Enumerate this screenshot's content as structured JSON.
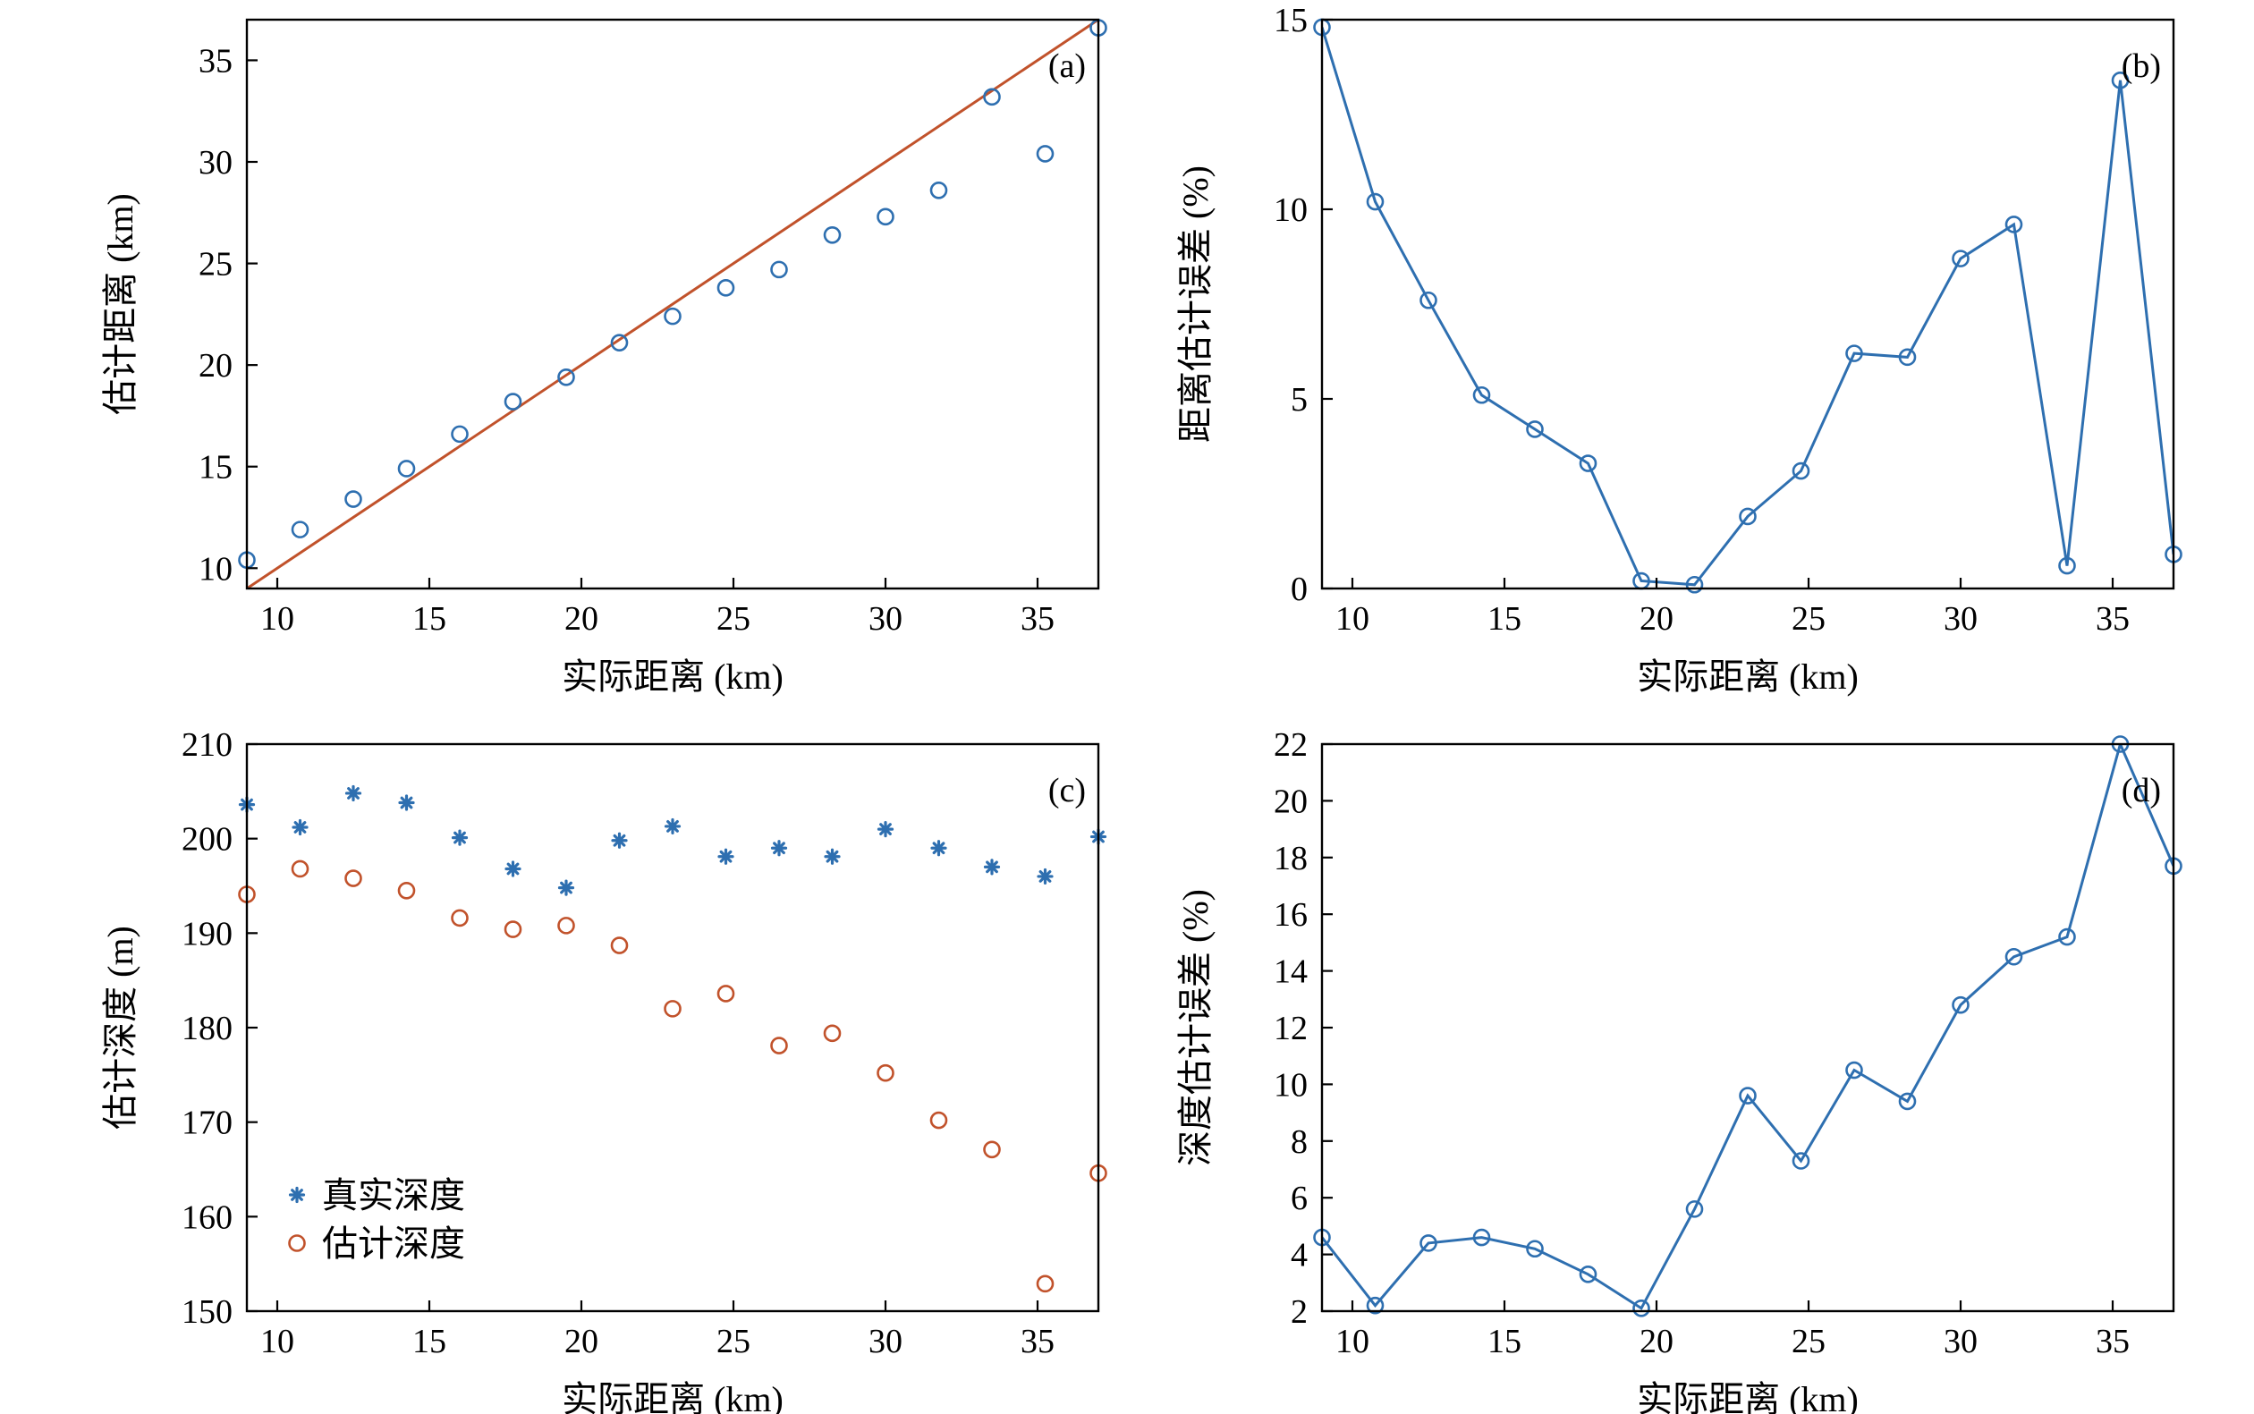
{
  "colors": {
    "blue": "#2e6fb0",
    "orange": "#c1522b",
    "axis": "#000000"
  },
  "chart_data": [
    {
      "panel": "(a)",
      "type": "scatter",
      "xlabel": "实际距离 (km)",
      "ylabel": "估计距离 (km)",
      "xlim": [
        9,
        37
      ],
      "ylim": [
        9,
        37
      ],
      "xticks": [
        10,
        15,
        20,
        25,
        30,
        35
      ],
      "yticks": [
        10,
        15,
        20,
        25,
        30,
        35
      ],
      "series": [
        {
          "kind": "scatter",
          "marker": "circle",
          "color": "blue",
          "x": [
            9.0,
            10.75,
            12.5,
            14.25,
            16.0,
            17.75,
            19.5,
            21.25,
            23.0,
            24.75,
            26.5,
            28.25,
            30.0,
            31.75,
            33.5,
            35.25,
            37.0
          ],
          "y": [
            10.4,
            11.9,
            13.4,
            14.9,
            16.6,
            18.2,
            19.4,
            21.1,
            22.4,
            23.8,
            24.7,
            26.4,
            27.3,
            28.6,
            33.2,
            30.4,
            36.6
          ]
        },
        {
          "kind": "line",
          "color": "orange",
          "x": [
            9,
            37
          ],
          "y": [
            9,
            37
          ]
        }
      ]
    },
    {
      "panel": "(b)",
      "type": "line",
      "xlabel": "实际距离 (km)",
      "ylabel": "距离估计误差 (%)",
      "xlim": [
        9,
        37
      ],
      "ylim": [
        0,
        15
      ],
      "xticks": [
        10,
        15,
        20,
        25,
        30,
        35
      ],
      "yticks": [
        0,
        5,
        10,
        15
      ],
      "series": [
        {
          "kind": "line-marker",
          "marker": "circle",
          "color": "blue",
          "x": [
            9.0,
            10.75,
            12.5,
            14.25,
            16.0,
            17.75,
            19.5,
            21.25,
            23.0,
            24.75,
            26.5,
            28.25,
            30.0,
            31.75,
            33.5,
            35.25,
            37.0
          ],
          "y": [
            14.8,
            10.2,
            7.6,
            5.1,
            4.2,
            3.3,
            0.2,
            0.1,
            1.9,
            3.1,
            6.2,
            6.1,
            8.7,
            9.6,
            0.6,
            13.4,
            0.9
          ]
        }
      ]
    },
    {
      "panel": "(c)",
      "type": "scatter",
      "xlabel": "实际距离 (km)",
      "ylabel": "估计深度 (m)",
      "xlim": [
        9,
        37
      ],
      "ylim": [
        150,
        210
      ],
      "xticks": [
        10,
        15,
        20,
        25,
        30,
        35
      ],
      "yticks": [
        150,
        160,
        170,
        180,
        190,
        200,
        210
      ],
      "legend": {
        "position": "bottom-left"
      },
      "series": [
        {
          "name": "真实深度",
          "kind": "scatter",
          "marker": "asterisk",
          "color": "blue",
          "x": [
            9.0,
            10.75,
            12.5,
            14.25,
            16.0,
            17.75,
            19.5,
            21.25,
            23.0,
            24.75,
            26.5,
            28.25,
            30.0,
            31.75,
            33.5,
            35.25,
            37.0
          ],
          "y": [
            203.6,
            201.2,
            204.8,
            203.8,
            200.1,
            196.8,
            194.8,
            199.8,
            201.3,
            198.1,
            199.0,
            198.1,
            201.0,
            199.0,
            197.0,
            196.0,
            200.2
          ]
        },
        {
          "name": "估计深度",
          "kind": "scatter",
          "marker": "circle",
          "color": "orange",
          "x": [
            9.0,
            10.75,
            12.5,
            14.25,
            16.0,
            17.75,
            19.5,
            21.25,
            23.0,
            24.75,
            26.5,
            28.25,
            30.0,
            31.75,
            33.5,
            35.25,
            37.0
          ],
          "y": [
            194.1,
            196.8,
            195.8,
            194.5,
            191.6,
            190.4,
            190.8,
            188.7,
            182.0,
            183.6,
            178.1,
            179.4,
            175.2,
            170.2,
            167.1,
            152.9,
            164.6
          ]
        }
      ]
    },
    {
      "panel": "(d)",
      "type": "line",
      "xlabel": "实际距离 (km)",
      "ylabel": "深度估计误差 (%)",
      "xlim": [
        9,
        37
      ],
      "ylim": [
        2,
        22
      ],
      "xticks": [
        10,
        15,
        20,
        25,
        30,
        35
      ],
      "yticks": [
        2,
        4,
        6,
        8,
        10,
        12,
        14,
        16,
        18,
        20,
        22
      ],
      "series": [
        {
          "kind": "line-marker",
          "marker": "circle",
          "color": "blue",
          "x": [
            9.0,
            10.75,
            12.5,
            14.25,
            16.0,
            17.75,
            19.5,
            21.25,
            23.0,
            24.75,
            26.5,
            28.25,
            30.0,
            31.75,
            33.5,
            35.25,
            37.0
          ],
          "y": [
            4.6,
            2.2,
            4.4,
            4.6,
            4.2,
            3.3,
            2.1,
            5.6,
            9.6,
            7.3,
            10.5,
            9.4,
            12.8,
            14.5,
            15.2,
            22.0,
            17.7
          ]
        }
      ]
    }
  ]
}
